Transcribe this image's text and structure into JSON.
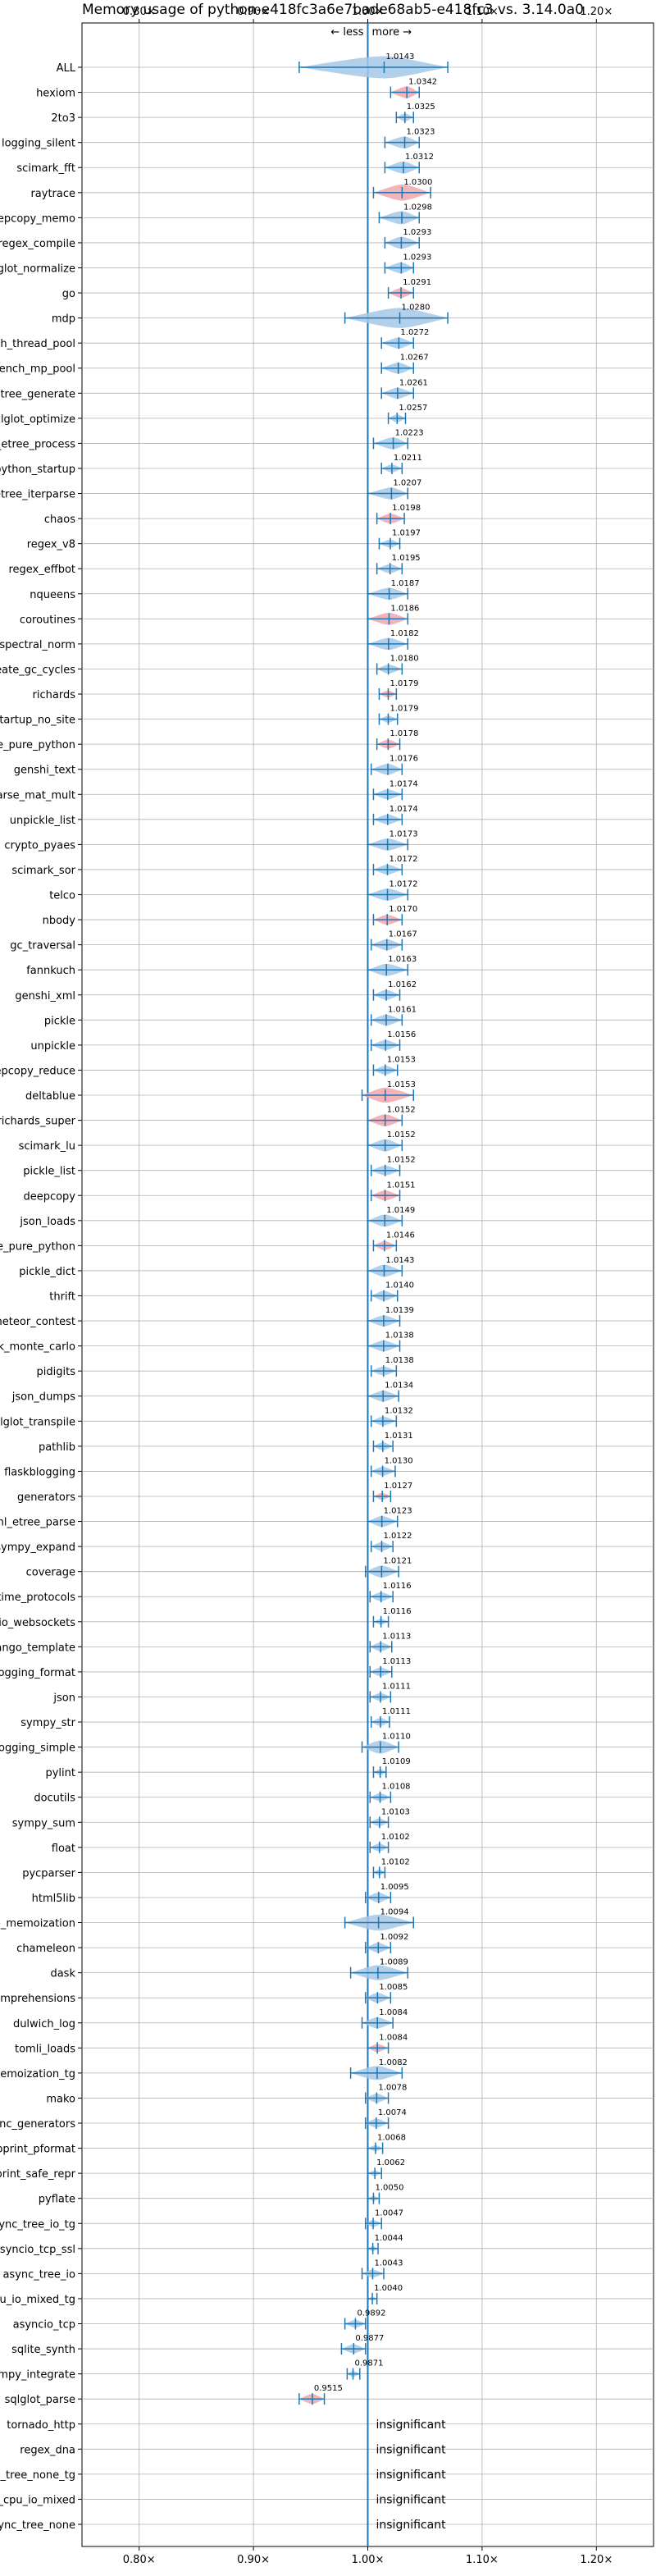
{
  "chart_data": {
    "type": "violin",
    "title": "Memory usage of python-e418fc3a6e7bade68ab5-e418fc3 vs. 3.14.0a0",
    "xlim": [
      0.75,
      1.25
    ],
    "xticks": [
      0.8,
      0.9,
      1.0,
      1.1,
      1.2
    ],
    "xtick_labels": [
      "0.80×",
      "0.90×",
      "1.00×",
      "1.10×",
      "1.20×"
    ],
    "direction_labels": {
      "less": "← less",
      "more": "more →"
    },
    "grid": true,
    "insignificant_label": "insignificant",
    "colors": {
      "neutral": "#1f77b4",
      "neutral_fill": "#a6c8e6",
      "worse_fill": "#f2a6ad"
    },
    "benchmarks": [
      {
        "name": "ALL",
        "value": 1.0143,
        "min": 0.94,
        "max": 1.07,
        "label": "1.0143",
        "color": "blue",
        "width": 0.022
      },
      {
        "name": "hexiom",
        "value": 1.0342,
        "min": 1.02,
        "max": 1.045,
        "label": "1.0342",
        "color": "red",
        "width": 0.012
      },
      {
        "name": "2to3",
        "value": 1.0325,
        "min": 1.025,
        "max": 1.04,
        "label": "1.0325",
        "color": "blue",
        "width": 0.008
      },
      {
        "name": "logging_silent",
        "value": 1.0323,
        "min": 1.015,
        "max": 1.045,
        "label": "1.0323",
        "color": "blue",
        "width": 0.012
      },
      {
        "name": "scimark_fft",
        "value": 1.0312,
        "min": 1.015,
        "max": 1.045,
        "label": "1.0312",
        "color": "blue",
        "width": 0.012
      },
      {
        "name": "raytrace",
        "value": 1.03,
        "min": 1.005,
        "max": 1.055,
        "label": "1.0300",
        "color": "red",
        "width": 0.016
      },
      {
        "name": "deepcopy_memo",
        "value": 1.0298,
        "min": 1.01,
        "max": 1.045,
        "label": "1.0298",
        "color": "blue",
        "width": 0.013
      },
      {
        "name": "regex_compile",
        "value": 1.0293,
        "min": 1.015,
        "max": 1.045,
        "label": "1.0293",
        "color": "blue",
        "width": 0.012
      },
      {
        "name": "sqlglot_normalize",
        "value": 1.0293,
        "min": 1.015,
        "max": 1.04,
        "label": "1.0293",
        "color": "blue",
        "width": 0.011
      },
      {
        "name": "go",
        "value": 1.0291,
        "min": 1.018,
        "max": 1.04,
        "label": "1.0291",
        "color": "red",
        "width": 0.01
      },
      {
        "name": "mdp",
        "value": 1.028,
        "min": 0.98,
        "max": 1.07,
        "label": "1.0280",
        "color": "blue",
        "width": 0.02
      },
      {
        "name": "bench_thread_pool",
        "value": 1.0272,
        "min": 1.012,
        "max": 1.04,
        "label": "1.0272",
        "color": "blue",
        "width": 0.011
      },
      {
        "name": "bench_mp_pool",
        "value": 1.0267,
        "min": 1.012,
        "max": 1.04,
        "label": "1.0267",
        "color": "blue",
        "width": 0.011
      },
      {
        "name": "xml_etree_generate",
        "value": 1.0261,
        "min": 1.012,
        "max": 1.04,
        "label": "1.0261",
        "color": "blue",
        "width": 0.011
      },
      {
        "name": "sqlglot_optimize",
        "value": 1.0257,
        "min": 1.018,
        "max": 1.033,
        "label": "1.0257",
        "color": "blue",
        "width": 0.008
      },
      {
        "name": "xml_etree_process",
        "value": 1.0223,
        "min": 1.005,
        "max": 1.035,
        "label": "1.0223",
        "color": "blue",
        "width": 0.012
      },
      {
        "name": "python_startup",
        "value": 1.0211,
        "min": 1.012,
        "max": 1.03,
        "label": "1.0211",
        "color": "blue",
        "width": 0.008
      },
      {
        "name": "xml_etree_iterparse",
        "value": 1.0207,
        "min": 1.0,
        "max": 1.035,
        "label": "1.0207",
        "color": "blue",
        "width": 0.012
      },
      {
        "name": "chaos",
        "value": 1.0198,
        "min": 1.008,
        "max": 1.032,
        "label": "1.0198",
        "color": "red",
        "width": 0.01
      },
      {
        "name": "regex_v8",
        "value": 1.0197,
        "min": 1.01,
        "max": 1.028,
        "label": "1.0197",
        "color": "blue",
        "width": 0.008
      },
      {
        "name": "regex_effbot",
        "value": 1.0195,
        "min": 1.008,
        "max": 1.03,
        "label": "1.0195",
        "color": "blue",
        "width": 0.009
      },
      {
        "name": "nqueens",
        "value": 1.0187,
        "min": 1.0,
        "max": 1.035,
        "label": "1.0187",
        "color": "blue",
        "width": 0.012
      },
      {
        "name": "coroutines",
        "value": 1.0186,
        "min": 1.0,
        "max": 1.035,
        "label": "1.0186",
        "color": "red",
        "width": 0.012
      },
      {
        "name": "spectral_norm",
        "value": 1.0182,
        "min": 1.0,
        "max": 1.035,
        "label": "1.0182",
        "color": "blue",
        "width": 0.012
      },
      {
        "name": "create_gc_cycles",
        "value": 1.018,
        "min": 1.008,
        "max": 1.03,
        "label": "1.0180",
        "color": "blue",
        "width": 0.009
      },
      {
        "name": "richards",
        "value": 1.0179,
        "min": 1.01,
        "max": 1.025,
        "label": "1.0179",
        "color": "red",
        "width": 0.007
      },
      {
        "name": "python_startup_no_site",
        "value": 1.0179,
        "min": 1.01,
        "max": 1.026,
        "label": "1.0179",
        "color": "blue",
        "width": 0.007
      },
      {
        "name": "unpickle_pure_python",
        "value": 1.0178,
        "min": 1.008,
        "max": 1.028,
        "label": "1.0178",
        "color": "red",
        "width": 0.009
      },
      {
        "name": "genshi_text",
        "value": 1.0176,
        "min": 1.003,
        "max": 1.03,
        "label": "1.0176",
        "color": "blue",
        "width": 0.011
      },
      {
        "name": "scimark_sparse_mat_mult",
        "value": 1.0174,
        "min": 1.005,
        "max": 1.03,
        "label": "1.0174",
        "color": "blue",
        "width": 0.01
      },
      {
        "name": "unpickle_list",
        "value": 1.0174,
        "min": 1.005,
        "max": 1.03,
        "label": "1.0174",
        "color": "blue",
        "width": 0.01
      },
      {
        "name": "crypto_pyaes",
        "value": 1.0173,
        "min": 1.0,
        "max": 1.035,
        "label": "1.0173",
        "color": "blue",
        "width": 0.012
      },
      {
        "name": "scimark_sor",
        "value": 1.0172,
        "min": 1.005,
        "max": 1.03,
        "label": "1.0172",
        "color": "blue",
        "width": 0.01
      },
      {
        "name": "telco",
        "value": 1.0172,
        "min": 1.0,
        "max": 1.035,
        "label": "1.0172",
        "color": "blue",
        "width": 0.012
      },
      {
        "name": "nbody",
        "value": 1.017,
        "min": 1.005,
        "max": 1.03,
        "label": "1.0170",
        "color": "red",
        "width": 0.01
      },
      {
        "name": "gc_traversal",
        "value": 1.0167,
        "min": 1.003,
        "max": 1.03,
        "label": "1.0167",
        "color": "blue",
        "width": 0.011
      },
      {
        "name": "fannkuch",
        "value": 1.0163,
        "min": 1.0,
        "max": 1.035,
        "label": "1.0163",
        "color": "blue",
        "width": 0.012
      },
      {
        "name": "genshi_xml",
        "value": 1.0162,
        "min": 1.005,
        "max": 1.028,
        "label": "1.0162",
        "color": "blue",
        "width": 0.01
      },
      {
        "name": "pickle",
        "value": 1.0161,
        "min": 1.003,
        "max": 1.03,
        "label": "1.0161",
        "color": "blue",
        "width": 0.011
      },
      {
        "name": "unpickle",
        "value": 1.0156,
        "min": 1.003,
        "max": 1.028,
        "label": "1.0156",
        "color": "blue",
        "width": 0.01
      },
      {
        "name": "deepcopy_reduce",
        "value": 1.0153,
        "min": 1.005,
        "max": 1.026,
        "label": "1.0153",
        "color": "blue",
        "width": 0.009
      },
      {
        "name": "deltablue",
        "value": 1.0153,
        "min": 0.995,
        "max": 1.04,
        "label": "1.0153",
        "color": "red",
        "width": 0.015
      },
      {
        "name": "richards_super",
        "value": 1.0152,
        "min": 1.0,
        "max": 1.03,
        "label": "1.0152",
        "color": "red",
        "width": 0.012
      },
      {
        "name": "scimark_lu",
        "value": 1.0152,
        "min": 1.0,
        "max": 1.03,
        "label": "1.0152",
        "color": "blue",
        "width": 0.012
      },
      {
        "name": "pickle_list",
        "value": 1.0152,
        "min": 1.003,
        "max": 1.028,
        "label": "1.0152",
        "color": "blue",
        "width": 0.01
      },
      {
        "name": "deepcopy",
        "value": 1.0151,
        "min": 1.003,
        "max": 1.028,
        "label": "1.0151",
        "color": "red",
        "width": 0.01
      },
      {
        "name": "json_loads",
        "value": 1.0149,
        "min": 1.0,
        "max": 1.03,
        "label": "1.0149",
        "color": "blue",
        "width": 0.012
      },
      {
        "name": "pickle_pure_python",
        "value": 1.0146,
        "min": 1.005,
        "max": 1.025,
        "label": "1.0146",
        "color": "red",
        "width": 0.009
      },
      {
        "name": "pickle_dict",
        "value": 1.0143,
        "min": 1.0,
        "max": 1.03,
        "label": "1.0143",
        "color": "blue",
        "width": 0.012
      },
      {
        "name": "thrift",
        "value": 1.014,
        "min": 1.003,
        "max": 1.026,
        "label": "1.0140",
        "color": "blue",
        "width": 0.01
      },
      {
        "name": "meteor_contest",
        "value": 1.0139,
        "min": 1.0,
        "max": 1.028,
        "label": "1.0139",
        "color": "blue",
        "width": 0.011
      },
      {
        "name": "scimark_monte_carlo",
        "value": 1.0138,
        "min": 1.0,
        "max": 1.028,
        "label": "1.0138",
        "color": "blue",
        "width": 0.011
      },
      {
        "name": "pidigits",
        "value": 1.0138,
        "min": 1.003,
        "max": 1.025,
        "label": "1.0138",
        "color": "blue",
        "width": 0.009
      },
      {
        "name": "json_dumps",
        "value": 1.0134,
        "min": 1.0,
        "max": 1.027,
        "label": "1.0134",
        "color": "blue",
        "width": 0.011
      },
      {
        "name": "sqlglot_transpile",
        "value": 1.0132,
        "min": 1.003,
        "max": 1.025,
        "label": "1.0132",
        "color": "blue",
        "width": 0.009
      },
      {
        "name": "pathlib",
        "value": 1.0131,
        "min": 1.005,
        "max": 1.022,
        "label": "1.0131",
        "color": "blue",
        "width": 0.008
      },
      {
        "name": "flaskblogging",
        "value": 1.013,
        "min": 1.003,
        "max": 1.024,
        "label": "1.0130",
        "color": "blue",
        "width": 0.009
      },
      {
        "name": "generators",
        "value": 1.0127,
        "min": 1.005,
        "max": 1.02,
        "label": "1.0127",
        "color": "red",
        "width": 0.007
      },
      {
        "name": "xml_etree_parse",
        "value": 1.0123,
        "min": 1.0,
        "max": 1.026,
        "label": "1.0123",
        "color": "blue",
        "width": 0.011
      },
      {
        "name": "sympy_expand",
        "value": 1.0122,
        "min": 1.003,
        "max": 1.022,
        "label": "1.0122",
        "color": "blue",
        "width": 0.009
      },
      {
        "name": "coverage",
        "value": 1.0121,
        "min": 0.998,
        "max": 1.027,
        "label": "1.0121",
        "color": "blue",
        "width": 0.012
      },
      {
        "name": "typing_runtime_protocols",
        "value": 1.0116,
        "min": 1.002,
        "max": 1.022,
        "label": "1.0116",
        "color": "blue",
        "width": 0.009
      },
      {
        "name": "asyncio_websockets",
        "value": 1.0116,
        "min": 1.005,
        "max": 1.018,
        "label": "1.0116",
        "color": "blue",
        "width": 0.006
      },
      {
        "name": "django_template",
        "value": 1.0113,
        "min": 1.002,
        "max": 1.021,
        "label": "1.0113",
        "color": "blue",
        "width": 0.009
      },
      {
        "name": "logging_format",
        "value": 1.0113,
        "min": 1.002,
        "max": 1.021,
        "label": "1.0113",
        "color": "blue",
        "width": 0.009
      },
      {
        "name": "json",
        "value": 1.0111,
        "min": 1.002,
        "max": 1.02,
        "label": "1.0111",
        "color": "blue",
        "width": 0.008
      },
      {
        "name": "sympy_str",
        "value": 1.0111,
        "min": 1.003,
        "max": 1.019,
        "label": "1.0111",
        "color": "blue",
        "width": 0.008
      },
      {
        "name": "logging_simple",
        "value": 1.011,
        "min": 0.995,
        "max": 1.027,
        "label": "1.0110",
        "color": "blue",
        "width": 0.013
      },
      {
        "name": "pylint",
        "value": 1.0109,
        "min": 1.005,
        "max": 1.016,
        "label": "1.0109",
        "color": "blue",
        "width": 0.006
      },
      {
        "name": "docutils",
        "value": 1.0108,
        "min": 1.002,
        "max": 1.02,
        "label": "1.0108",
        "color": "blue",
        "width": 0.008
      },
      {
        "name": "sympy_sum",
        "value": 1.0103,
        "min": 1.002,
        "max": 1.018,
        "label": "1.0103",
        "color": "blue",
        "width": 0.008
      },
      {
        "name": "float",
        "value": 1.0102,
        "min": 1.002,
        "max": 1.018,
        "label": "1.0102",
        "color": "blue",
        "width": 0.008
      },
      {
        "name": "pycparser",
        "value": 1.0102,
        "min": 1.005,
        "max": 1.015,
        "label": "1.0102",
        "color": "blue",
        "width": 0.006
      },
      {
        "name": "html5lib",
        "value": 1.0095,
        "min": 0.998,
        "max": 1.02,
        "label": "1.0095",
        "color": "blue",
        "width": 0.01
      },
      {
        "name": "async_tree_memoization",
        "value": 1.0094,
        "min": 0.98,
        "max": 1.04,
        "label": "1.0094",
        "color": "blue",
        "width": 0.016
      },
      {
        "name": "chameleon",
        "value": 1.0092,
        "min": 0.998,
        "max": 1.02,
        "label": "1.0092",
        "color": "blue",
        "width": 0.01
      },
      {
        "name": "dask",
        "value": 1.0089,
        "min": 0.985,
        "max": 1.035,
        "label": "1.0089",
        "color": "blue",
        "width": 0.015
      },
      {
        "name": "comprehensions",
        "value": 1.0085,
        "min": 0.998,
        "max": 1.02,
        "label": "1.0085",
        "color": "blue",
        "width": 0.01
      },
      {
        "name": "dulwich_log",
        "value": 1.0084,
        "min": 0.995,
        "max": 1.022,
        "label": "1.0084",
        "color": "blue",
        "width": 0.011
      },
      {
        "name": "tomli_loads",
        "value": 1.0084,
        "min": 1.0,
        "max": 1.018,
        "label": "1.0084",
        "color": "red",
        "width": 0.008
      },
      {
        "name": "async_tree_memoization_tg",
        "value": 1.0082,
        "min": 0.985,
        "max": 1.03,
        "label": "1.0082",
        "color": "blue",
        "width": 0.014
      },
      {
        "name": "mako",
        "value": 1.0078,
        "min": 0.998,
        "max": 1.018,
        "label": "1.0078",
        "color": "blue",
        "width": 0.009
      },
      {
        "name": "async_generators",
        "value": 1.0074,
        "min": 0.998,
        "max": 1.018,
        "label": "1.0074",
        "color": "blue",
        "width": 0.009
      },
      {
        "name": "pprint_pformat",
        "value": 1.0068,
        "min": 1.0,
        "max": 1.013,
        "label": "1.0068",
        "color": "blue",
        "width": 0.006
      },
      {
        "name": "pprint_safe_repr",
        "value": 1.0062,
        "min": 1.0,
        "max": 1.012,
        "label": "1.0062",
        "color": "blue",
        "width": 0.006
      },
      {
        "name": "pyflate",
        "value": 1.005,
        "min": 1.0,
        "max": 1.01,
        "label": "1.0050",
        "color": "blue",
        "width": 0.005
      },
      {
        "name": "async_tree_io_tg",
        "value": 1.0047,
        "min": 0.998,
        "max": 1.012,
        "label": "1.0047",
        "color": "blue",
        "width": 0.007
      },
      {
        "name": "asyncio_tcp_ssl",
        "value": 1.0044,
        "min": 1.0,
        "max": 1.009,
        "label": "1.0044",
        "color": "blue",
        "width": 0.005
      },
      {
        "name": "async_tree_io",
        "value": 1.0043,
        "min": 0.995,
        "max": 1.014,
        "label": "1.0043",
        "color": "blue",
        "width": 0.008
      },
      {
        "name": "async_tree_cpu_io_mixed_tg",
        "value": 1.004,
        "min": 1.0,
        "max": 1.008,
        "label": "1.0040",
        "color": "blue",
        "width": 0.004
      },
      {
        "name": "asyncio_tcp",
        "value": 0.9892,
        "min": 0.98,
        "max": 0.998,
        "label": "0.9892",
        "color": "blue",
        "width": 0.008
      },
      {
        "name": "sqlite_synth",
        "value": 0.9877,
        "min": 0.977,
        "max": 0.998,
        "label": "0.9877",
        "color": "blue",
        "width": 0.009
      },
      {
        "name": "sympy_integrate",
        "value": 0.9871,
        "min": 0.982,
        "max": 0.993,
        "label": "0.9871",
        "color": "blue",
        "width": 0.006
      },
      {
        "name": "sqlglot_parse",
        "value": 0.9515,
        "min": 0.94,
        "max": 0.962,
        "label": "0.9515",
        "color": "red",
        "width": 0.01
      },
      {
        "name": "tornado_http",
        "insignificant": true
      },
      {
        "name": "regex_dna",
        "insignificant": true
      },
      {
        "name": "async_tree_none_tg",
        "insignificant": true
      },
      {
        "name": "async_tree_cpu_io_mixed",
        "insignificant": true
      },
      {
        "name": "async_tree_none",
        "insignificant": true
      }
    ]
  }
}
